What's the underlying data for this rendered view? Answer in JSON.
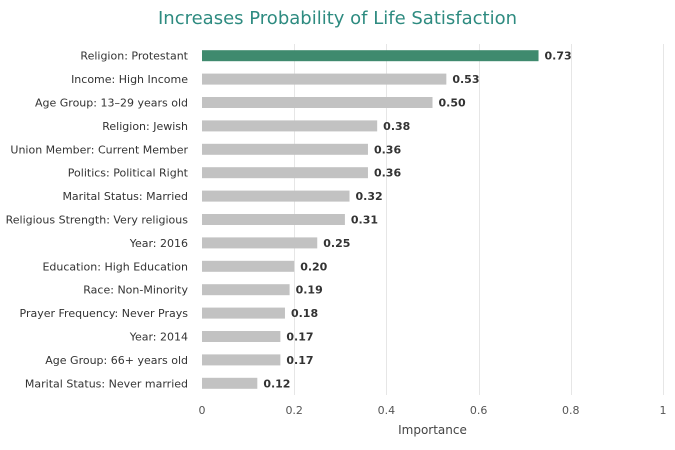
{
  "chart_data": {
    "type": "bar",
    "orientation": "horizontal",
    "title": "Increases Probability of Life Satisfaction",
    "xlabel": "Importance",
    "ylabel": "",
    "xlim": [
      0,
      1
    ],
    "xticks": [
      0,
      0.2,
      0.4,
      0.6,
      0.8,
      1
    ],
    "xtick_labels": [
      "0",
      "0.2",
      "0.4",
      "0.6",
      "0.8",
      "1"
    ],
    "grid": "vertical",
    "legend": "none",
    "categories": [
      "Religion: Protestant",
      "Income: High Income",
      "Age Group: 13–29 years old",
      "Religion: Jewish",
      "Union Member: Current Member",
      "Politics: Political Right",
      "Marital Status: Married",
      "Religious Strength: Very religious",
      "Year: 2016",
      "Education: High Education",
      "Race: Non-Minority",
      "Prayer Frequency: Never Prays",
      "Year: 2014",
      "Age Group: 66+ years old",
      "Marital Status: Never married"
    ],
    "values": [
      0.73,
      0.53,
      0.5,
      0.38,
      0.36,
      0.36,
      0.32,
      0.31,
      0.25,
      0.2,
      0.19,
      0.18,
      0.17,
      0.17,
      0.12
    ],
    "value_labels": [
      "0.73",
      "0.53",
      "0.50",
      "0.38",
      "0.36",
      "0.36",
      "0.32",
      "0.31",
      "0.25",
      "0.20",
      "0.19",
      "0.18",
      "0.17",
      "0.17",
      "0.12"
    ],
    "colors": {
      "highlight": "#3f8a6e",
      "default": "#c2c2c2",
      "title": "#2e8b80",
      "grid": "#e6e6e6"
    },
    "highlight_index": 0
  }
}
